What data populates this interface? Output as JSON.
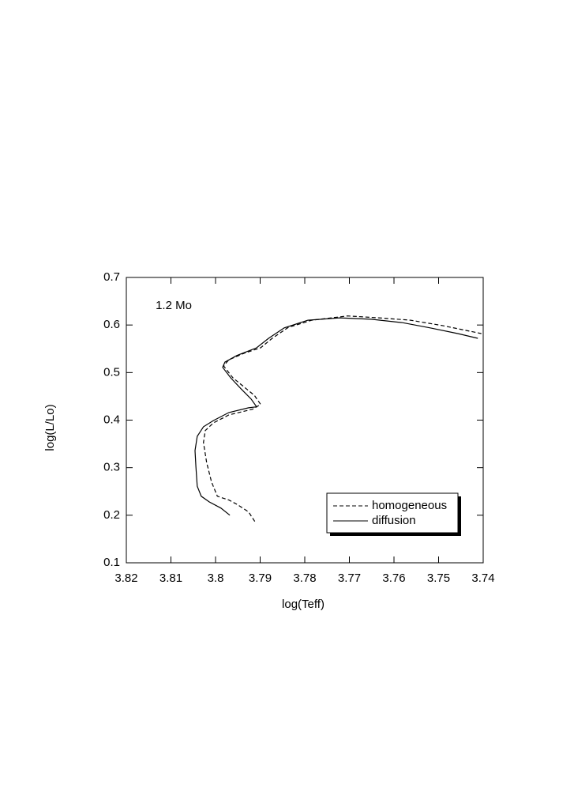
{
  "chart_data": {
    "type": "line",
    "annotation": "1.2 Mo",
    "xlabel": "log(Teff)",
    "ylabel": "log(L/Lo)",
    "xlim": [
      3.82,
      3.74
    ],
    "ylim": [
      0.1,
      0.7
    ],
    "xticks": [
      3.82,
      3.81,
      3.8,
      3.79,
      3.78,
      3.77,
      3.76,
      3.75,
      3.74
    ],
    "yticks": [
      0.1,
      0.2,
      0.3,
      0.4,
      0.5,
      0.6,
      0.7
    ],
    "legend": "lower right",
    "series": [
      {
        "name": "homogeneous",
        "color": "#000000",
        "dash": "dashed",
        "x": [
          3.7912,
          3.7926,
          3.7952,
          3.797,
          3.7996,
          3.8009,
          3.802,
          3.8027,
          3.8023,
          3.8005,
          3.797,
          3.7917,
          3.7899,
          3.7913,
          3.7935,
          3.7961,
          3.7982,
          3.797,
          3.7935,
          3.7899,
          3.7873,
          3.7837,
          3.7784,
          3.7704,
          3.7634,
          3.7563,
          3.7492,
          3.7404
        ],
        "values": [
          0.187,
          0.207,
          0.223,
          0.232,
          0.24,
          0.27,
          0.311,
          0.353,
          0.378,
          0.394,
          0.411,
          0.423,
          0.433,
          0.452,
          0.469,
          0.489,
          0.514,
          0.527,
          0.541,
          0.552,
          0.572,
          0.595,
          0.61,
          0.619,
          0.615,
          0.61,
          0.599,
          0.582
        ]
      },
      {
        "name": "diffusion",
        "color": "#000000",
        "dash": "solid",
        "x": [
          3.7968,
          3.7988,
          3.8014,
          3.8032,
          3.8041,
          3.8044,
          3.8046,
          3.8041,
          3.8027,
          3.8005,
          3.797,
          3.7926,
          3.7908,
          3.792,
          3.7943,
          3.7966,
          3.7984,
          3.7979,
          3.7952,
          3.7908,
          3.7881,
          3.7846,
          3.7793,
          3.7722,
          3.7651,
          3.7581,
          3.7519,
          3.7457,
          3.7412
        ],
        "values": [
          0.2,
          0.215,
          0.228,
          0.24,
          0.261,
          0.303,
          0.336,
          0.366,
          0.386,
          0.399,
          0.416,
          0.426,
          0.428,
          0.444,
          0.466,
          0.489,
          0.511,
          0.522,
          0.536,
          0.552,
          0.572,
          0.594,
          0.61,
          0.615,
          0.612,
          0.605,
          0.594,
          0.582,
          0.572
        ]
      }
    ]
  }
}
